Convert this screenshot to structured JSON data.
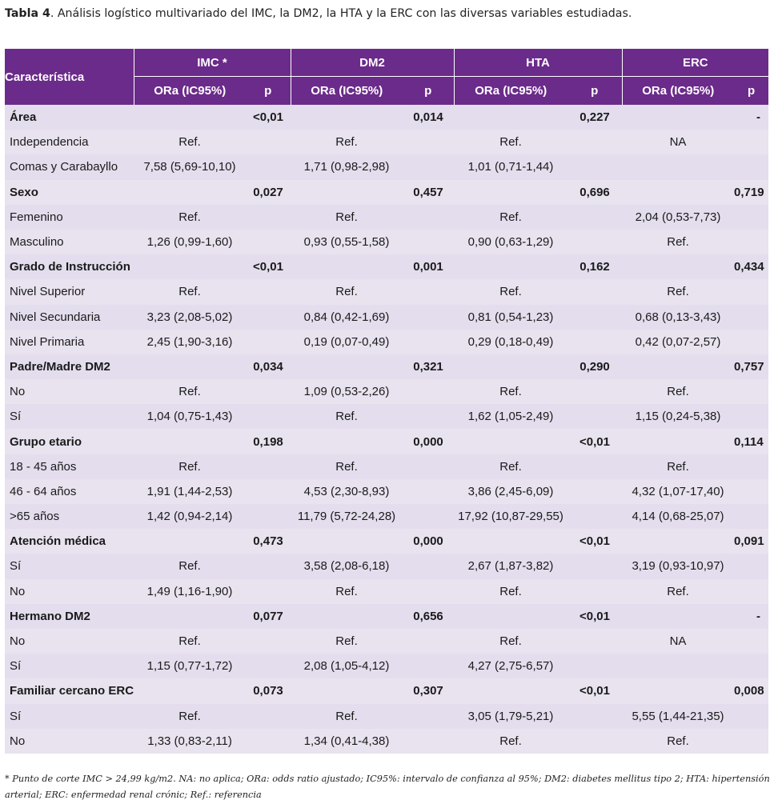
{
  "caption": {
    "label": "Tabla 4",
    "text": ". Análisis logístico multivariado del IMC, la DM2, la HTA y la ERC con las diversas variables estudiadas."
  },
  "header": {
    "characteristic": "Característica",
    "groups": [
      "IMC *",
      "DM2",
      "HTA",
      "ERC"
    ],
    "or_label": "ORa (IC95%)",
    "p_label": "p"
  },
  "rows": [
    {
      "type": "group",
      "label": "Área",
      "cells": [
        "",
        "<0,01",
        "",
        "0,014",
        "",
        "0,227",
        "",
        "-"
      ]
    },
    {
      "type": "item",
      "label": "Independencia",
      "cells": [
        "Ref.",
        "",
        "Ref.",
        "",
        "Ref.",
        "",
        "NA",
        ""
      ]
    },
    {
      "type": "item",
      "label": "Comas y Carabayllo",
      "cells": [
        "7,58 (5,69-10,10)",
        "",
        "1,71 (0,98-2,98)",
        "",
        "1,01 (0,71-1,44)",
        "",
        "",
        ""
      ]
    },
    {
      "type": "group",
      "label": "Sexo",
      "cells": [
        "",
        "0,027",
        "",
        "0,457",
        "",
        "0,696",
        "",
        "0,719"
      ]
    },
    {
      "type": "item",
      "label": "Femenino",
      "cells": [
        "Ref.",
        "",
        "Ref.",
        "",
        "Ref.",
        "",
        "2,04 (0,53-7,73)",
        ""
      ]
    },
    {
      "type": "item",
      "label": "Masculino",
      "cells": [
        "1,26 (0,99-1,60)",
        "",
        "0,93 (0,55-1,58)",
        "",
        "0,90 (0,63-1,29)",
        "",
        "Ref.",
        ""
      ]
    },
    {
      "type": "group",
      "label": "Grado de Instrucción",
      "cells": [
        "",
        "<0,01",
        "",
        "0,001",
        "",
        "0,162",
        "",
        "0,434"
      ]
    },
    {
      "type": "item",
      "label": "Nivel Superior",
      "cells": [
        "Ref.",
        "",
        "Ref.",
        "",
        "Ref.",
        "",
        "Ref.",
        ""
      ]
    },
    {
      "type": "item",
      "label": "Nivel Secundaria",
      "cells": [
        "3,23 (2,08-5,02)",
        "",
        "0,84 (0,42-1,69)",
        "",
        "0,81 (0,54-1,23)",
        "",
        "0,68 (0,13-3,43)",
        ""
      ]
    },
    {
      "type": "item",
      "label": "Nivel Primaria",
      "cells": [
        "2,45 (1,90-3,16)",
        "",
        "0,19 (0,07-0,49)",
        "",
        "0,29 (0,18-0,49)",
        "",
        "0,42 (0,07-2,57)",
        ""
      ]
    },
    {
      "type": "group",
      "label": "Padre/Madre DM2",
      "cells": [
        "",
        "0,034",
        "",
        "0,321",
        "",
        "0,290",
        "",
        "0,757"
      ]
    },
    {
      "type": "item",
      "label": "No",
      "cells": [
        "Ref.",
        "",
        "1,09 (0,53-2,26)",
        "",
        "Ref.",
        "",
        "Ref.",
        ""
      ]
    },
    {
      "type": "item",
      "label": "Sí",
      "cells": [
        "1,04 (0,75-1,43)",
        "",
        "Ref.",
        "",
        "1,62 (1,05-2,49)",
        "",
        "1,15 (0,24-5,38)",
        ""
      ]
    },
    {
      "type": "group",
      "label": "Grupo etario",
      "cells": [
        "",
        "0,198",
        "",
        "0,000",
        "",
        "<0,01",
        "",
        "0,114"
      ]
    },
    {
      "type": "item",
      "label": "18 - 45 años",
      "cells": [
        "Ref.",
        "",
        "Ref.",
        "",
        "Ref.",
        "",
        "Ref.",
        ""
      ]
    },
    {
      "type": "item",
      "label": "46 - 64 años",
      "cells": [
        "1,91 (1,44-2,53)",
        "",
        "4,53 (2,30-8,93)",
        "",
        "3,86 (2,45-6,09)",
        "",
        "4,32 (1,07-17,40)",
        ""
      ]
    },
    {
      "type": "item",
      "label": " >65 años",
      "cells": [
        "1,42 (0,94-2,14)",
        "",
        "11,79 (5,72-24,28)",
        "",
        "17,92 (10,87-29,55)",
        "",
        "4,14 (0,68-25,07)",
        ""
      ]
    },
    {
      "type": "group",
      "label": "Atención médica",
      "cells": [
        "",
        "0,473",
        "",
        "0,000",
        "",
        "<0,01",
        "",
        "0,091"
      ]
    },
    {
      "type": "item",
      "label": "Sí",
      "cells": [
        "Ref.",
        "",
        "3,58 (2,08-6,18)",
        "",
        "2,67 (1,87-3,82)",
        "",
        "3,19 (0,93-10,97)",
        ""
      ]
    },
    {
      "type": "item",
      "label": "No",
      "cells": [
        "1,49 (1,16-1,90)",
        "",
        "Ref.",
        "",
        "Ref.",
        "",
        "Ref.",
        ""
      ]
    },
    {
      "type": "group",
      "label": "Hermano DM2",
      "cells": [
        "",
        "0,077",
        "",
        "0,656",
        "",
        "<0,01",
        "",
        "-"
      ]
    },
    {
      "type": "item",
      "label": "No",
      "cells": [
        "Ref.",
        "",
        "Ref.",
        "",
        "Ref.",
        "",
        "NA",
        ""
      ]
    },
    {
      "type": "item",
      "label": "Sí",
      "cells": [
        "1,15 (0,77-1,72)",
        "",
        "2,08 (1,05-4,12)",
        "",
        "4,27 (2,75-6,57)",
        "",
        "",
        ""
      ]
    },
    {
      "type": "group",
      "label": "Familiar cercano ERC",
      "cells": [
        "",
        "0,073",
        "",
        "0,307",
        "",
        "<0,01",
        "",
        "0,008"
      ]
    },
    {
      "type": "item",
      "label": "Sí",
      "cells": [
        "Ref.",
        "",
        "Ref.",
        "",
        "3,05 (1,79-5,21)",
        "",
        "5,55 (1,44-21,35)",
        ""
      ]
    },
    {
      "type": "item",
      "label": "No",
      "cells": [
        "1,33 (0,83-2,11)",
        "",
        "1,34 (0,41-4,38)",
        "",
        "Ref.",
        "",
        "Ref.",
        ""
      ]
    }
  ],
  "footnote": "* Punto de corte IMC > 24,99 kg/m2. NA: no aplica; ORa: odds ratio ajustado; IC95%: intervalo de confianza al 95%; DM2: diabetes mellitus tipo 2; HTA: hipertensión arterial; ERC: enfermedad renal crónic; Ref.: referencia"
}
